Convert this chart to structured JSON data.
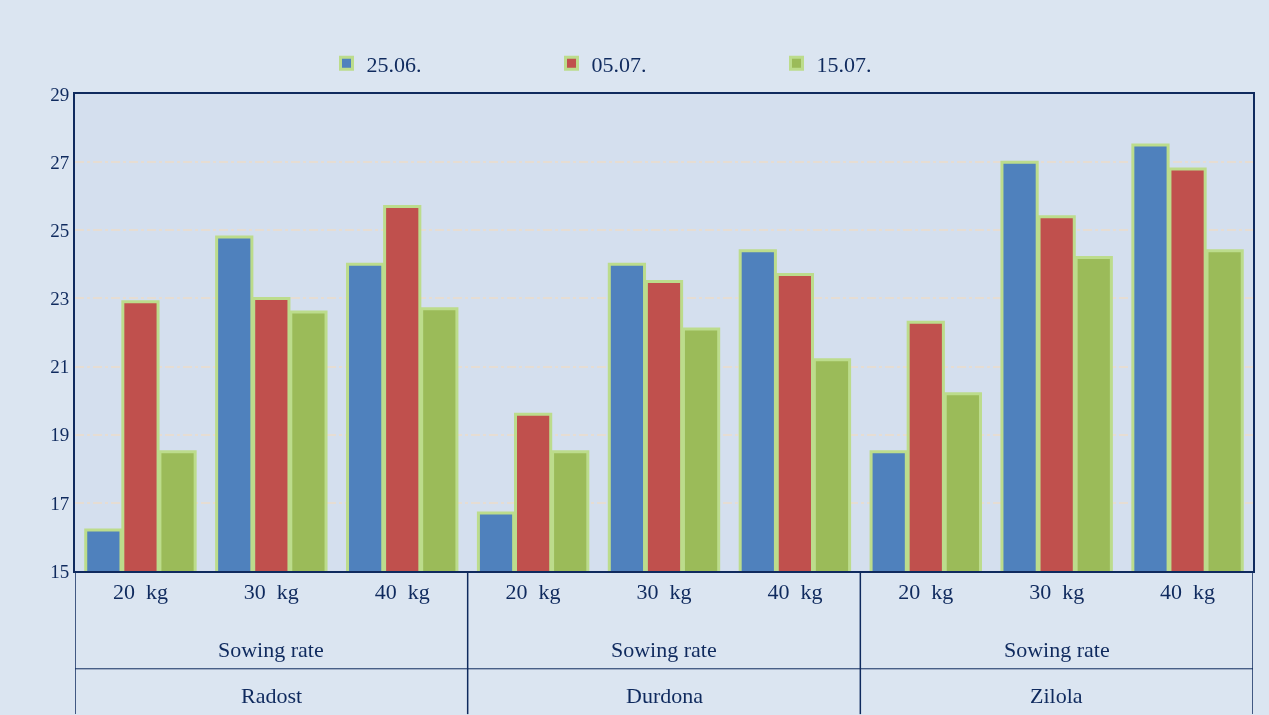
{
  "chart_data": {
    "type": "bar",
    "categories": [
      "20  kg",
      "30  kg",
      "40  kg",
      "20  kg",
      "30  kg",
      "40  kg",
      "20  kg",
      "30  kg",
      "40  kg"
    ],
    "series": [
      {
        "name": "25.06.",
        "color": "#4f81bd",
        "values": [
          16.2,
          24.8,
          24.0,
          16.7,
          24.0,
          24.4,
          18.5,
          27.0,
          27.5
        ]
      },
      {
        "name": "05.07.",
        "color": "#c0504d",
        "values": [
          22.9,
          23.0,
          25.7,
          19.6,
          23.5,
          23.7,
          22.3,
          25.4,
          26.8
        ]
      },
      {
        "name": "15.07.",
        "color": "#9bbb59",
        "values": [
          18.5,
          22.6,
          22.7,
          18.5,
          22.1,
          21.2,
          20.2,
          24.2,
          24.4
        ]
      }
    ],
    "annotations": [
      "Sowing rate",
      "Radost",
      "Sowing rate",
      "Durdona",
      "Sowing rate",
      "Zilola"
    ],
    "ylim": [
      15,
      29
    ],
    "yticks": [
      15,
      17,
      19,
      21,
      23,
      25,
      27,
      29
    ],
    "grid": "y",
    "legend": "top"
  }
}
